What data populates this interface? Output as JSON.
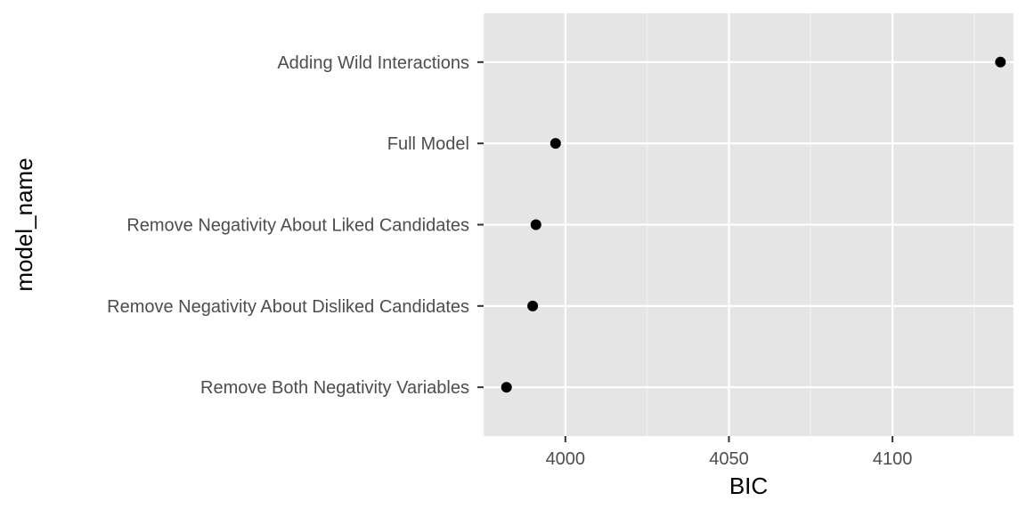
{
  "chart_data": {
    "type": "scatter",
    "title": "",
    "xlabel": "BIC",
    "ylabel": "model_name",
    "categories": [
      "Remove Both Negativity Variables",
      "Remove Negativity About Disliked Candidates",
      "Remove Negativity About Liked Candidates",
      "Full Model",
      "Adding Wild Interactions"
    ],
    "values": [
      3982,
      3990,
      3991,
      3997,
      4133
    ],
    "xlim": [
      3975,
      4137
    ],
    "xticks": [
      4000,
      4050,
      4100
    ],
    "xtick_labels": [
      "4000",
      "4050",
      "4100"
    ],
    "x_minor_gridlines": [
      3975,
      4025,
      4075,
      4125
    ],
    "grid": true,
    "legend": "none"
  },
  "colors": {
    "panel_background": "#e5e5e5",
    "grid_major": "#ffffff",
    "grid_minor": "#f2f2f2",
    "point": "#000000",
    "tick_text": "#4d4d4d",
    "axis_title": "#000000",
    "tick_mark": "#333333"
  }
}
